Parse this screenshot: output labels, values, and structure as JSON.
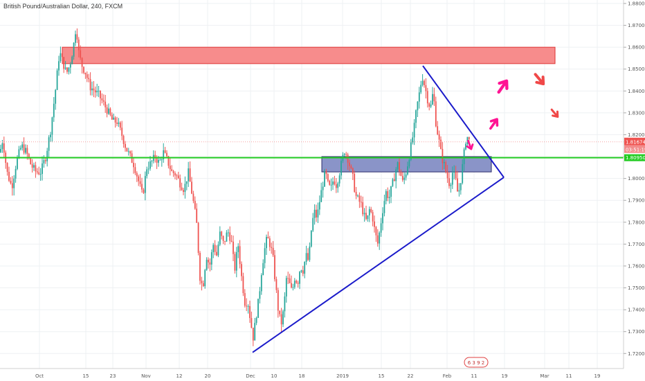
{
  "chart_data": {
    "type": "candlestick",
    "title": "British Pound/Australian Dollar, 240, FXCM",
    "y_ticks": [
      "1.88000",
      "1.87000",
      "1.86000",
      "1.85000",
      "1.84000",
      "1.83000",
      "1.82000",
      "1.81000",
      "1.80000",
      "1.79000",
      "1.78000",
      "1.77000",
      "1.76000",
      "1.75000",
      "1.74000",
      "1.73000",
      "1.72000"
    ],
    "ylim": [
      1.716,
      1.881
    ],
    "x_ticks": [
      "Oct",
      "15",
      "23",
      "Nov",
      "12",
      "20",
      "Dec",
      "10",
      "18",
      "2019",
      "15",
      "22",
      "Feb",
      "11",
      "19",
      "Mar",
      "11",
      "19"
    ],
    "price_path": [
      [
        0,
        1.812
      ],
      [
        4,
        1.818
      ],
      [
        10,
        1.803
      ],
      [
        17,
        1.796
      ],
      [
        24,
        1.808
      ],
      [
        31,
        1.815
      ],
      [
        38,
        1.812
      ],
      [
        45,
        1.806
      ],
      [
        52,
        1.803
      ],
      [
        59,
        1.803
      ],
      [
        66,
        1.81
      ],
      [
        73,
        1.822
      ],
      [
        80,
        1.84
      ],
      [
        86,
        1.858
      ],
      [
        91,
        1.853
      ],
      [
        96,
        1.848
      ],
      [
        101,
        1.852
      ],
      [
        106,
        1.86
      ],
      [
        110,
        1.87
      ],
      [
        114,
        1.857
      ],
      [
        118,
        1.852
      ],
      [
        124,
        1.848
      ],
      [
        130,
        1.842
      ],
      [
        137,
        1.84
      ],
      [
        143,
        1.838
      ],
      [
        150,
        1.834
      ],
      [
        157,
        1.83
      ],
      [
        163,
        1.826
      ],
      [
        169,
        1.826
      ],
      [
        176,
        1.82
      ],
      [
        182,
        1.814
      ],
      [
        188,
        1.81
      ],
      [
        194,
        1.806
      ],
      [
        200,
        1.799
      ],
      [
        206,
        1.792
      ],
      [
        212,
        1.805
      ],
      [
        218,
        1.807
      ],
      [
        224,
        1.81
      ],
      [
        230,
        1.807
      ],
      [
        236,
        1.812
      ],
      [
        242,
        1.808
      ],
      [
        248,
        1.803
      ],
      [
        254,
        1.802
      ],
      [
        260,
        1.798
      ],
      [
        266,
        1.795
      ],
      [
        272,
        1.803
      ],
      [
        278,
        1.792
      ],
      [
        284,
        1.78
      ],
      [
        289,
        1.755
      ],
      [
        293,
        1.75
      ],
      [
        298,
        1.765
      ],
      [
        303,
        1.76
      ],
      [
        308,
        1.77
      ],
      [
        313,
        1.765
      ],
      [
        318,
        1.775
      ],
      [
        323,
        1.77
      ],
      [
        329,
        1.776
      ],
      [
        334,
        1.772
      ],
      [
        339,
        1.758
      ],
      [
        344,
        1.77
      ],
      [
        349,
        1.755
      ],
      [
        354,
        1.743
      ],
      [
        358,
        1.744
      ],
      [
        362,
        1.735
      ],
      [
        366,
        1.727
      ],
      [
        370,
        1.737
      ],
      [
        374,
        1.745
      ],
      [
        378,
        1.758
      ],
      [
        382,
        1.767
      ],
      [
        386,
        1.773
      ],
      [
        390,
        1.77
      ],
      [
        394,
        1.765
      ],
      [
        398,
        1.752
      ],
      [
        402,
        1.74
      ],
      [
        406,
        1.733
      ],
      [
        410,
        1.74
      ],
      [
        414,
        1.755
      ],
      [
        418,
        1.752
      ],
      [
        422,
        1.748
      ],
      [
        426,
        1.755
      ],
      [
        430,
        1.752
      ],
      [
        434,
        1.76
      ],
      [
        438,
        1.758
      ],
      [
        442,
        1.765
      ],
      [
        446,
        1.762
      ],
      [
        450,
        1.777
      ],
      [
        454,
        1.785
      ],
      [
        458,
        1.782
      ],
      [
        462,
        1.79
      ],
      [
        466,
        1.797
      ],
      [
        470,
        1.803
      ],
      [
        474,
        1.797
      ],
      [
        478,
        1.795
      ],
      [
        482,
        1.8
      ],
      [
        486,
        1.797
      ],
      [
        490,
        1.802
      ],
      [
        494,
        1.808
      ],
      [
        498,
        1.813
      ],
      [
        502,
        1.81
      ],
      [
        506,
        1.805
      ],
      [
        510,
        1.8
      ],
      [
        514,
        1.792
      ],
      [
        518,
        1.79
      ],
      [
        522,
        1.788
      ],
      [
        526,
        1.783
      ],
      [
        530,
        1.78
      ],
      [
        534,
        1.786
      ],
      [
        538,
        1.783
      ],
      [
        542,
        1.775
      ],
      [
        546,
        1.77
      ],
      [
        550,
        1.779
      ],
      [
        554,
        1.788
      ],
      [
        558,
        1.794
      ],
      [
        562,
        1.791
      ],
      [
        566,
        1.796
      ],
      [
        570,
        1.801
      ],
      [
        574,
        1.807
      ],
      [
        578,
        1.803
      ],
      [
        582,
        1.798
      ],
      [
        586,
        1.802
      ],
      [
        590,
        1.808
      ],
      [
        594,
        1.815
      ],
      [
        598,
        1.822
      ],
      [
        602,
        1.832
      ],
      [
        606,
        1.839
      ],
      [
        610,
        1.847
      ],
      [
        614,
        1.842
      ],
      [
        618,
        1.836
      ],
      [
        622,
        1.832
      ],
      [
        626,
        1.84
      ],
      [
        630,
        1.825
      ],
      [
        634,
        1.818
      ],
      [
        638,
        1.81
      ],
      [
        642,
        1.806
      ],
      [
        646,
        1.801
      ],
      [
        650,
        1.797
      ],
      [
        654,
        1.803
      ],
      [
        658,
        1.8
      ],
      [
        662,
        1.792
      ],
      [
        666,
        1.8
      ],
      [
        670,
        1.81
      ],
      [
        674,
        1.82
      ],
      [
        678,
        1.817
      ]
    ],
    "current_price": "1.81674",
    "countdown": "03:51:19",
    "horizontal_line_price": 1.8095,
    "horizontal_line_label": "1.80950",
    "trendline_lower": {
      "from": {
        "x": "Dec",
        "y": 1.7205
      },
      "to": {
        "x": "19 Feb",
        "y": 1.8005
      }
    },
    "trendline_upper": {
      "from": {
        "x": "22 Jan",
        "y": 1.8515
      },
      "to": {
        "x": "19 Feb",
        "y": 1.8005
      }
    },
    "resistance_zone": {
      "low": 1.8525,
      "high": 1.86,
      "color": "#f78c8c"
    },
    "support_zone": {
      "low": 1.803,
      "high": 1.81,
      "color": "#8a94c8"
    },
    "annotation_colors": {
      "up_arrow": "#ff1493",
      "down_arrow": "#f04848"
    },
    "colors": {
      "up": "#26a69a",
      "down": "#ef5350",
      "hline": "#22cc22",
      "trendline": "#1a1aca",
      "price_tag": "#ef5350"
    },
    "grid": true,
    "footer_logo_text": "6 3 9 2"
  }
}
